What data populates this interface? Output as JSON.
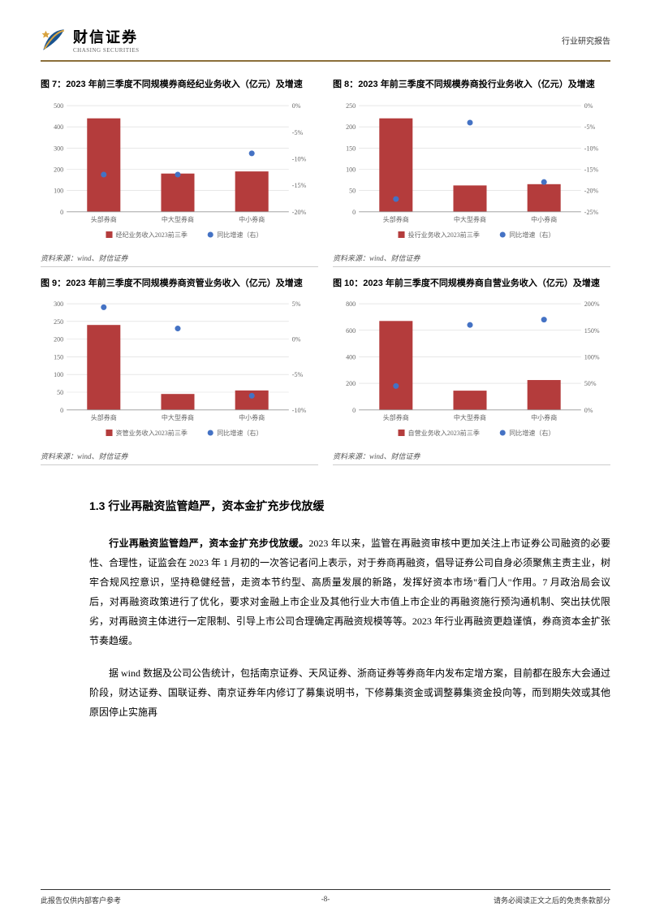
{
  "header": {
    "logo_cn": "财信证券",
    "logo_en": "CHASING SECURITIES",
    "right": "行业研究报告"
  },
  "charts": [
    {
      "fig_label": "图 7：",
      "title_rest": "2023 年前三季度不同规模券商经纪业务收入（亿元）及增速",
      "categories": [
        "头部券商",
        "中大型券商",
        "中小券商"
      ],
      "bar_values": [
        440,
        180,
        190
      ],
      "dot_values": [
        -13,
        -13,
        -9
      ],
      "ylim_left": [
        0,
        500
      ],
      "ytick_left": [
        0,
        100,
        200,
        300,
        400,
        500
      ],
      "ylim_right": [
        -20,
        0
      ],
      "ytick_right": [
        0,
        -5,
        -10,
        -15,
        -20
      ],
      "bar_legend": "经纪业务收入2023前三季",
      "dot_legend": "同比增速（右）",
      "bar_color": "#b43c3c",
      "dot_color": "#4472c4",
      "grid_color": "#d9d9d9",
      "axis_fontsize": 8,
      "legend_fontsize": 8,
      "source": "资料来源：wind、财信证券"
    },
    {
      "fig_label": "图 8：",
      "title_rest": "2023 年前三季度不同规模券商投行业务收入（亿元）及增速",
      "categories": [
        "头部券商",
        "中大型券商",
        "中小券商"
      ],
      "bar_values": [
        220,
        62,
        65
      ],
      "dot_values": [
        -22,
        -4,
        -18
      ],
      "ylim_left": [
        0,
        250
      ],
      "ytick_left": [
        0,
        50,
        100,
        150,
        200,
        250
      ],
      "ylim_right": [
        -25,
        0
      ],
      "ytick_right": [
        0,
        -5,
        -10,
        -15,
        -20,
        -25
      ],
      "bar_legend": "投行业务收入2023前三季",
      "dot_legend": "同比增速（右）",
      "bar_color": "#b43c3c",
      "dot_color": "#4472c4",
      "grid_color": "#d9d9d9",
      "axis_fontsize": 8,
      "legend_fontsize": 8,
      "source": "资料来源：wind、财信证券"
    },
    {
      "fig_label": "图 9：",
      "title_rest": "2023 年前三季度不同规模券商资管业务收入（亿元）及增速",
      "categories": [
        "头部券商",
        "中大型券商",
        "中小券商"
      ],
      "bar_values": [
        240,
        45,
        55
      ],
      "dot_values": [
        4.5,
        1.5,
        -8
      ],
      "ylim_left": [
        0,
        300
      ],
      "ytick_left": [
        0,
        50,
        100,
        150,
        200,
        250,
        300
      ],
      "ylim_right": [
        -10,
        5
      ],
      "ytick_right": [
        5,
        0,
        -5,
        -10
      ],
      "bar_legend": "资管业务收入2023前三季",
      "dot_legend": "同比增速（右）",
      "bar_color": "#b43c3c",
      "dot_color": "#4472c4",
      "grid_color": "#d9d9d9",
      "axis_fontsize": 8,
      "legend_fontsize": 8,
      "source": "资料来源：wind、财信证券"
    },
    {
      "fig_label": "图 10：",
      "title_rest": "2023 年前三季度不同规模券商自营业务收入（亿元）及增速",
      "categories": [
        "头部券商",
        "中大型券商",
        "中小券商"
      ],
      "bar_values": [
        670,
        145,
        225
      ],
      "dot_values": [
        45,
        160,
        170
      ],
      "ylim_left": [
        0,
        800
      ],
      "ytick_left": [
        0,
        200,
        400,
        600,
        800
      ],
      "ylim_right": [
        0,
        200
      ],
      "ytick_right": [
        0,
        50,
        100,
        150,
        200
      ],
      "bar_legend": "自营业务收入2023前三季",
      "dot_legend": "同比增速（右）",
      "bar_color": "#b43c3c",
      "dot_color": "#4472c4",
      "grid_color": "#d9d9d9",
      "axis_fontsize": 8,
      "legend_fontsize": 8,
      "source": "资料来源：wind、财信证券"
    }
  ],
  "section": {
    "title": "1.3 行业再融资监管趋严，资本金扩充步伐放缓",
    "para1_bold": "行业再融资监管趋严，资本金扩充步伐放缓。",
    "para1_rest": "2023 年以来，监管在再融资审核中更加关注上市证券公司融资的必要性、合理性，证监会在 2023 年 1 月初的一次答记者问上表示，对于券商再融资，倡导证券公司自身必须聚焦主责主业，树牢合规风控意识，坚持稳健经营，走资本节约型、高质量发展的新路，发挥好资本市场\"看门人\"作用。7 月政治局会议后，对再融资政策进行了优化，要求对金融上市企业及其他行业大市值上市企业的再融资施行预沟通机制、突出扶优限劣，对再融资主体进行一定限制、引导上市公司合理确定再融资规模等等。2023 年行业再融资更趋谨慎，券商资本金扩张节奏趋缓。",
    "para2": "据 wind 数据及公司公告统计，包括南京证券、天风证券、浙商证券等券商年内发布定增方案，目前都在股东大会通过阶段，财达证券、国联证券、南京证券年内修订了募集说明书，下修募集资金或调整募集资金投向等，而到期失效或其他原因停止实施再"
  },
  "footer": {
    "left": "此报告仅供内部客户参考",
    "center": "-8-",
    "right": "请务必阅读正文之后的免责条款部分"
  }
}
